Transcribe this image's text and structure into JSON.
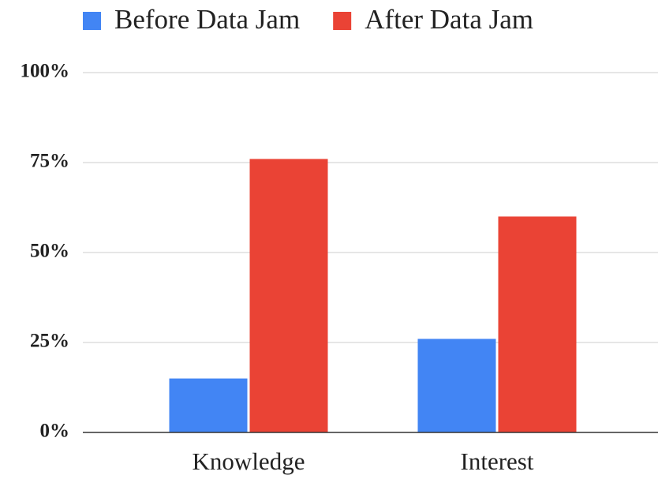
{
  "chart_data": {
    "type": "bar",
    "categories": [
      "Knowledge",
      "Interest"
    ],
    "series": [
      {
        "name": "Before Data Jam",
        "color": "#4285f4",
        "values": [
          15,
          26
        ]
      },
      {
        "name": "After Data Jam",
        "color": "#ea4335",
        "values": [
          76,
          60
        ]
      }
    ],
    "ylim": [
      0,
      100
    ],
    "yticks": [
      {
        "value": 0,
        "label": "0%"
      },
      {
        "value": 25,
        "label": "25%"
      },
      {
        "value": 50,
        "label": "50%"
      },
      {
        "value": 75,
        "label": "75%"
      },
      {
        "value": 100,
        "label": "100%"
      }
    ],
    "grid": true,
    "legend": "top"
  }
}
